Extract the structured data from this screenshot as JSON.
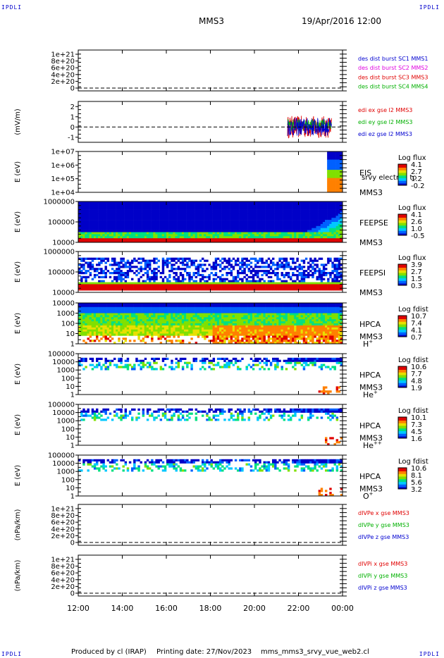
{
  "corner_label": "IPDLI",
  "header": {
    "spacecraft": "MMS3",
    "date": "19/Apr/2016 12:00"
  },
  "footer": {
    "produced": "Produced by cl (IRAP)",
    "printing": "Printing date: 27/Nov/2023",
    "script": "mms_mms3_srvy_vue_web2.cl"
  },
  "colors": {
    "red": "#e00000",
    "green": "#00b000",
    "blue": "#0000d0",
    "magenta": "#e000e0",
    "cmap": [
      "#0000c8",
      "#0060ff",
      "#00c8ff",
      "#00e080",
      "#80e000",
      "#e8e000",
      "#ff8000",
      "#e00000"
    ]
  },
  "time_axis": {
    "ticks": [
      "12:00",
      "14:00",
      "16:00",
      "18:00",
      "20:00",
      "22:00",
      "00:00"
    ]
  },
  "chart_data": [
    {
      "type": "line",
      "ylabel": "",
      "yticks": [
        "1e+21",
        "8e+20",
        "6e+20",
        "4e+20",
        "2e+20",
        "0"
      ],
      "zero_line": true,
      "legend": [
        {
          "text": "des dist burst SC1 MMS1",
          "color": "blue"
        },
        {
          "text": "des dist burst SC2 MMS2",
          "color": "magenta"
        },
        {
          "text": "des dist burst SC3 MMS3",
          "color": "red"
        },
        {
          "text": "des dist burst SC4 MMS4",
          "color": "green"
        }
      ]
    },
    {
      "type": "line",
      "ylabel": "(mV/m)",
      "ylim": [
        -1.5,
        2.5
      ],
      "yticks": [
        "2",
        "1",
        "0",
        "-1"
      ],
      "zero_line": true,
      "active_range": [
        "21:30",
        "23:30"
      ],
      "legend": [
        {
          "text": "edi ex gse l2 MMS3",
          "color": "red"
        },
        {
          "text": "edi ey gse l2 MMS3",
          "color": "green"
        },
        {
          "text": "edi ez gse l2 MMS3",
          "color": "blue"
        }
      ]
    },
    {
      "type": "heatmap",
      "ylabel": "E (eV)",
      "yticks": [
        "1e+07",
        "1e+06",
        "1e+05",
        "1e+04"
      ],
      "labels": [
        "EIS",
        "",
        "MMS3"
      ],
      "overlay": "srvy electron to",
      "colorbar": {
        "title": "Log flux",
        "ticks": [
          "4.1",
          "2.7",
          "1.2",
          "-0.2"
        ]
      }
    },
    {
      "type": "heatmap",
      "ylabel": "E (eV)",
      "yticks": [
        "1000000",
        "100000",
        "10000"
      ],
      "labels": [
        "FEEPSE",
        "",
        "MMS3"
      ],
      "colorbar": {
        "title": "Log flux",
        "ticks": [
          "4.1",
          "2.6",
          "1.0",
          "-0.5"
        ]
      }
    },
    {
      "type": "heatmap",
      "ylabel": "E (eV)",
      "yticks": [
        "1000000",
        "100000",
        "10000"
      ],
      "labels": [
        "FEEPSI",
        "",
        "MMS3"
      ],
      "colorbar": {
        "title": "Log flux",
        "ticks": [
          "3.9",
          "2.7",
          "1.5",
          "0.3"
        ]
      }
    },
    {
      "type": "heatmap",
      "ylabel": "E (eV)",
      "yticks": [
        "10000",
        "1000",
        "100",
        "10",
        "1"
      ],
      "labels": [
        "HPCA",
        "MMS3",
        "H+"
      ],
      "colorbar": {
        "title": "Log fdist",
        "ticks": [
          "10.7",
          "7.4",
          "4.1",
          "0.7"
        ]
      }
    },
    {
      "type": "heatmap",
      "ylabel": "E (eV)",
      "yticks": [
        "100000",
        "10000",
        "1000",
        "100",
        "10",
        "1"
      ],
      "labels": [
        "HPCA",
        "MMS3",
        "He+"
      ],
      "colorbar": {
        "title": "Log fdist",
        "ticks": [
          "10.6",
          "7.7",
          "4.8",
          "1.9"
        ]
      }
    },
    {
      "type": "heatmap",
      "ylabel": "E (eV)",
      "yticks": [
        "100000",
        "10000",
        "1000",
        "100",
        "10",
        "1"
      ],
      "labels": [
        "HPCA",
        "MMS3",
        "He++"
      ],
      "colorbar": {
        "title": "Log fdist",
        "ticks": [
          "10.1",
          "7.3",
          "4.5",
          "1.6"
        ]
      }
    },
    {
      "type": "heatmap",
      "ylabel": "E (eV)",
      "yticks": [
        "100000",
        "10000",
        "1000",
        "100",
        "10",
        "1"
      ],
      "labels": [
        "HPCA",
        "MMS3",
        "O+"
      ],
      "colorbar": {
        "title": "Log fdist",
        "ticks": [
          "10.6",
          "8.1",
          "5.6",
          "3.2"
        ]
      }
    },
    {
      "type": "line",
      "ylabel": "(nPa/km)",
      "yticks": [
        "1e+21",
        "8e+20",
        "6e+20",
        "4e+20",
        "2e+20",
        "0"
      ],
      "zero_line": true,
      "legend": [
        {
          "text": "dIVPe x gse MMS3",
          "color": "red"
        },
        {
          "text": "dIVPe y gse MMS3",
          "color": "green"
        },
        {
          "text": "dIVPe z gse MMS3",
          "color": "blue"
        }
      ]
    },
    {
      "type": "line",
      "ylabel": "(nPa/km)",
      "yticks": [
        "1e+21",
        "8e+20",
        "6e+20",
        "4e+20",
        "2e+20",
        "0"
      ],
      "zero_line": true,
      "legend": [
        {
          "text": "dIVPi x gse MMS3",
          "color": "red"
        },
        {
          "text": "dIVPi y gse MMS3",
          "color": "green"
        },
        {
          "text": "dIVPi z gse MMS3",
          "color": "blue"
        }
      ]
    }
  ]
}
